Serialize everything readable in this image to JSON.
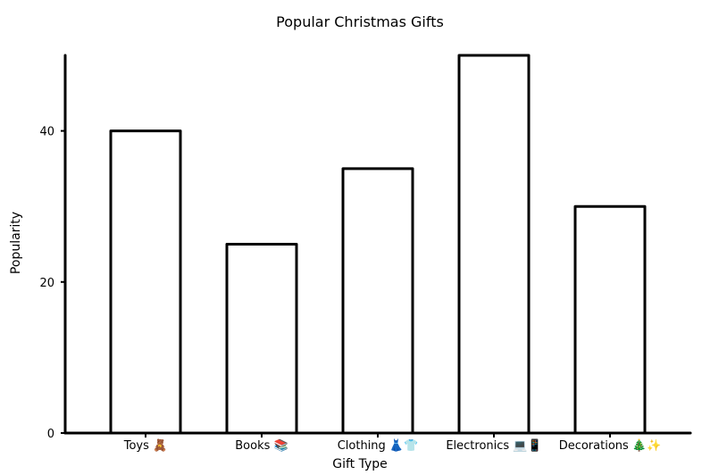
{
  "chart_data": {
    "type": "bar",
    "title": "Popular Christmas Gifts",
    "xlabel": "Gift Type",
    "ylabel": "Popularity",
    "categories": [
      "Toys 🧸",
      "Books 📚",
      "Clothing 👗👕",
      "Electronics 💻📱",
      "Decorations 🎄✨"
    ],
    "values": [
      40,
      25,
      35,
      50,
      30
    ],
    "ylim": [
      0,
      50
    ],
    "yticks": [
      0,
      20,
      40
    ],
    "grid": false,
    "bar_color": "#ffffff",
    "edge_color": "#000000"
  }
}
